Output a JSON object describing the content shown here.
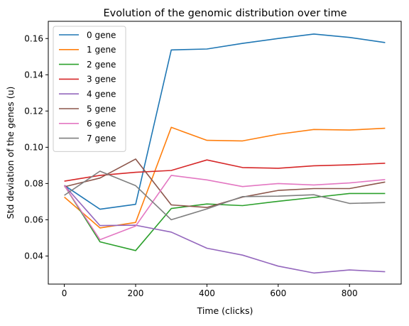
{
  "chart_data": {
    "type": "line",
    "title": "Evolution of the genomic distribution over time",
    "xlabel": "Time (clicks)",
    "ylabel": "Std deviation of the genes (u)",
    "xlim": [
      -45,
      945
    ],
    "ylim": [
      0.0245,
      0.1695
    ],
    "xticks": [
      0,
      200,
      400,
      600,
      800
    ],
    "yticks": [
      0.04,
      0.06,
      0.08,
      0.1,
      0.12,
      0.14,
      0.16
    ],
    "xtick_labels": [
      "0",
      "200",
      "400",
      "600",
      "800"
    ],
    "ytick_labels": [
      "0.04",
      "0.06",
      "0.08",
      "0.10",
      "0.12",
      "0.14",
      "0.16"
    ],
    "grid": false,
    "legend_position": "top-left",
    "x": [
      0,
      100,
      200,
      300,
      400,
      500,
      600,
      700,
      800,
      900
    ],
    "series": [
      {
        "name": "0 gene",
        "color": "#1f77b4",
        "values": [
          0.079,
          0.0658,
          0.0685,
          0.1537,
          0.1542,
          0.1573,
          0.16,
          0.1625,
          0.1606,
          0.1578
        ]
      },
      {
        "name": "1 gene",
        "color": "#ff7f0e",
        "values": [
          0.0725,
          0.0555,
          0.0585,
          0.111,
          0.1038,
          0.1035,
          0.1072,
          0.1098,
          0.1095,
          0.1105
        ]
      },
      {
        "name": "2 gene",
        "color": "#2ca02c",
        "values": [
          0.079,
          0.0478,
          0.043,
          0.0662,
          0.0687,
          0.0678,
          0.0702,
          0.0723,
          0.0745,
          0.0745
        ]
      },
      {
        "name": "3 gene",
        "color": "#d62728",
        "values": [
          0.0813,
          0.0845,
          0.0862,
          0.0872,
          0.093,
          0.0888,
          0.0884,
          0.0898,
          0.0903,
          0.0912
        ]
      },
      {
        "name": "4 gene",
        "color": "#9467bd",
        "values": [
          0.079,
          0.0568,
          0.057,
          0.0532,
          0.0443,
          0.0405,
          0.0344,
          0.0306,
          0.0323,
          0.0313
        ]
      },
      {
        "name": "5 gene",
        "color": "#8c564b",
        "values": [
          0.0782,
          0.083,
          0.0935,
          0.0682,
          0.0668,
          0.0725,
          0.0762,
          0.0772,
          0.0772,
          0.0808
        ]
      },
      {
        "name": "6 gene",
        "color": "#e377c2",
        "values": [
          0.079,
          0.049,
          0.0565,
          0.0845,
          0.082,
          0.0783,
          0.08,
          0.0792,
          0.0803,
          0.0822
        ]
      },
      {
        "name": "7 gene",
        "color": "#7f7f7f",
        "values": [
          0.0735,
          0.0868,
          0.0788,
          0.06,
          0.066,
          0.0728,
          0.073,
          0.0738,
          0.069,
          0.0695
        ]
      }
    ]
  }
}
